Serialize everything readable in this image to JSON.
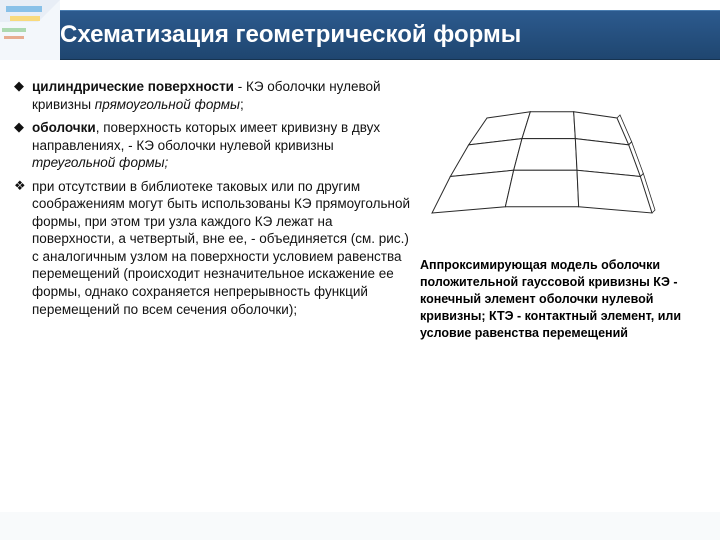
{
  "title": "Схематизация геометрической формы",
  "bullets": [
    {
      "marker": "◆",
      "marker_filled": true,
      "html": "<b>цилиндрические поверхности</b> - КЭ оболочки нулевой кривизны <i>прямоугольной формы</i>;"
    },
    {
      "marker": "◆",
      "marker_filled": true,
      "html": "<b>оболочки</b>, поверхность которых имеет кривизну в двух направлениях, - КЭ оболочки нулевой кривизны <i>треугольной формы;</i>"
    },
    {
      "marker": "❖",
      "marker_filled": false,
      "html": "при отсутствии в библиотеке таковых или по другим соображениям могут быть использованы КЭ прямоугольной формы, при этом три узла каждого КЭ лежат на поверхности, а четвертый, вне ее, - объединяется (см. рис.) с аналогичным узлом на поверхности условием равенства перемещений (происходит незначительное искажение ее формы, однако сохраняется непрерывность функций перемещений по всем сечения оболочки);"
    }
  ],
  "caption": "Аппроксимирующая модель оболочки положительной гауссовой кривизны\nКЭ - конечный элемент оболочки нулевой кривизны; КТЭ - контактный элемент, или условие равенства перемещений",
  "diagram": {
    "type": "sketch",
    "description": "3x3 grid of flat rectangular shell finite elements approximating a doubly-curved surface patch",
    "stroke_color": "#2a2a2a",
    "fill_color": "#ffffff",
    "rows": 3,
    "cols": 3
  },
  "colors": {
    "title_bg_top": "#2c5a8e",
    "title_bg_bottom": "#1f4670",
    "title_text": "#ffffff",
    "body_text": "#111111",
    "caption_text": "#000000",
    "background": "#ffffff"
  }
}
